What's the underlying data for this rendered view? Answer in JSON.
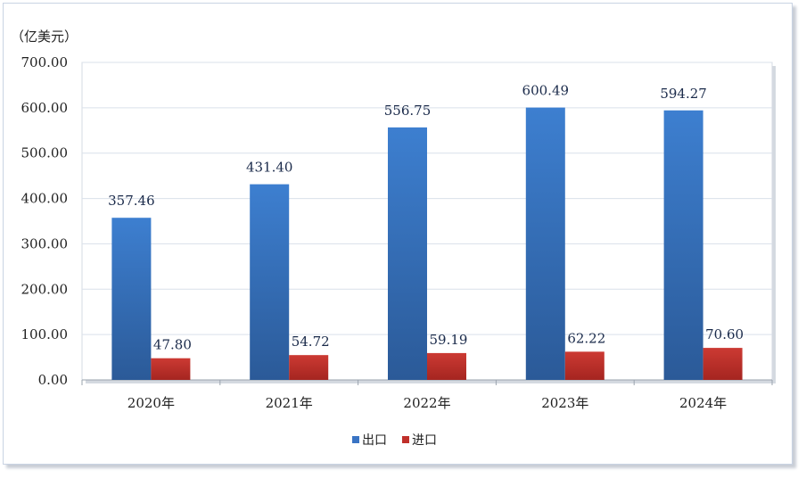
{
  "chart_data": {
    "type": "bar",
    "unit": "（亿美元）",
    "categories": [
      "2020年",
      "2021年",
      "2022年",
      "2023年",
      "2024年"
    ],
    "series": [
      {
        "name": "出口",
        "values": [
          357.46,
          431.4,
          556.75,
          600.49,
          594.27
        ],
        "labels": [
          "357.46",
          "431.40",
          "556.75",
          "600.49",
          "594.27"
        ],
        "color": "#3a74c4"
      },
      {
        "name": "进口",
        "values": [
          47.8,
          54.72,
          59.19,
          62.22,
          70.6
        ],
        "labels": [
          "47.80",
          "54.72",
          "59.19",
          "62.22",
          "70.60"
        ],
        "color": "#c0302b"
      }
    ],
    "ylim": [
      0,
      700
    ],
    "yticks": [
      "0.00",
      "100.00",
      "200.00",
      "300.00",
      "400.00",
      "500.00",
      "600.00",
      "700.00"
    ],
    "grid": true,
    "legend_position": "bottom"
  }
}
